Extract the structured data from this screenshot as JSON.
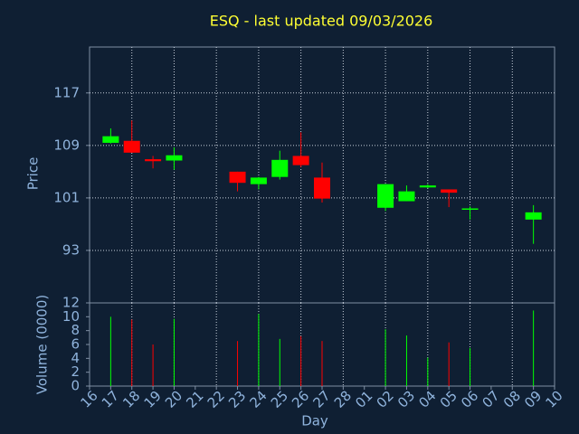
{
  "chart_data": {
    "type": "candlestick",
    "title": "ESQ - last updated 09/03/2026",
    "ylabel": "Price",
    "volume_label": "Volume (0000)",
    "xlabel": "Day",
    "categories": [
      "16",
      "17",
      "18",
      "19",
      "20",
      "21",
      "22",
      "23",
      "24",
      "25",
      "26",
      "27",
      "28",
      "01",
      "02",
      "03",
      "04",
      "05",
      "06",
      "07",
      "08",
      "09",
      "10"
    ],
    "open": [
      null,
      109.4,
      109.7,
      106.9,
      106.7,
      null,
      null,
      105.0,
      103.1,
      104.2,
      107.4,
      104.1,
      null,
      null,
      99.5,
      100.5,
      102.6,
      102.3,
      99.2,
      null,
      null,
      97.7,
      null
    ],
    "high": [
      null,
      111.6,
      112.8,
      107.4,
      108.7,
      null,
      null,
      105.0,
      104.2,
      108.2,
      111.0,
      106.4,
      null,
      null,
      103.1,
      102.9,
      103.1,
      102.3,
      99.7,
      null,
      null,
      99.9,
      null
    ],
    "low": [
      null,
      109.3,
      107.9,
      105.5,
      105.3,
      null,
      null,
      102.0,
      102.3,
      103.8,
      105.7,
      100.3,
      null,
      null,
      99.0,
      100.5,
      102.5,
      99.6,
      97.7,
      null,
      null,
      94.0,
      null
    ],
    "close": [
      null,
      110.4,
      107.9,
      106.6,
      107.5,
      null,
      null,
      103.3,
      104.1,
      106.8,
      106.0,
      100.9,
      null,
      null,
      103.1,
      102.0,
      102.9,
      101.8,
      99.4,
      null,
      null,
      98.8,
      null
    ],
    "volume": [
      null,
      10.0,
      9.6,
      6.0,
      9.7,
      null,
      null,
      6.5,
      10.4,
      6.8,
      7.2,
      6.5,
      null,
      null,
      8.2,
      7.3,
      4.1,
      6.3,
      5.5,
      null,
      null,
      10.9,
      null
    ],
    "up_color": "#00ff00",
    "down_color": "#ff0000",
    "ylim": [
      85,
      124
    ],
    "yticks": [
      93,
      101,
      109,
      117
    ],
    "volume_ylim": [
      0,
      12
    ],
    "volume_yticks": [
      0,
      2,
      4,
      6,
      8,
      10,
      12
    ],
    "grid": true
  }
}
